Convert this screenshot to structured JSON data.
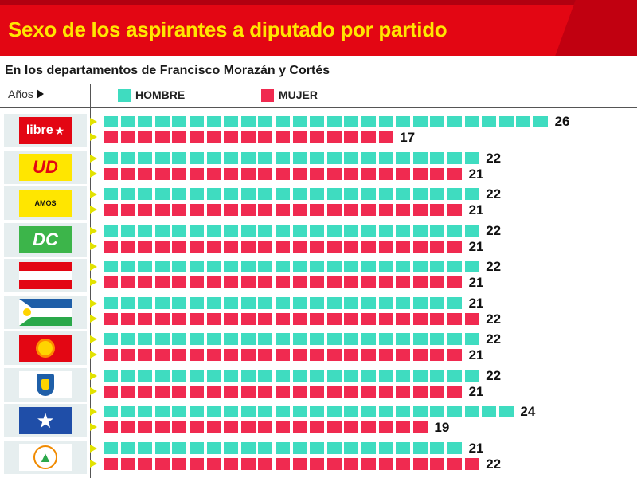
{
  "header": {
    "title": "Sexo de los aspirantes a diputado por partido",
    "subtitle": "En los departamentos de Francisco Morazán y Cortés",
    "years_label": "Años"
  },
  "colors": {
    "banner": "#e30613",
    "title": "#ffe600",
    "hombre": "#3fdcc0",
    "mujer": "#f02a50",
    "pointer": "#e2e200"
  },
  "chart_data": {
    "type": "bar",
    "legend": [
      "HOMBRE",
      "MUJER"
    ],
    "legend_position": "top",
    "categories": [
      "libre",
      "UD",
      "VAMOS",
      "DC",
      "red-white flag",
      "multicolor flag",
      "sun flag",
      "shield emblem",
      "star flag",
      "tree emblem"
    ],
    "series": [
      {
        "name": "HOMBRE",
        "values": [
          26,
          22,
          22,
          22,
          22,
          21,
          22,
          22,
          24,
          21
        ]
      },
      {
        "name": "MUJER",
        "values": [
          17,
          21,
          21,
          21,
          21,
          22,
          21,
          21,
          19,
          22
        ]
      }
    ]
  },
  "logos": [
    {
      "text": "libre",
      "icon": "libre-logo-icon",
      "bg": "#e30613",
      "fg": "#ffffff"
    },
    {
      "text": "UD",
      "icon": "ud-logo-icon",
      "bg": "#ffe600",
      "fg": "#e30613"
    },
    {
      "text": "AMOS",
      "icon": "vamos-logo-icon",
      "bg": "#ffe600",
      "fg": "#111111"
    },
    {
      "text": "DC",
      "icon": "dc-logo-icon",
      "bg": "#3cb54a",
      "fg": "#ffffff"
    },
    {
      "text": "",
      "icon": "red-white-flag-icon",
      "bg": "#e30613",
      "fg": "#ffffff"
    },
    {
      "text": "",
      "icon": "multicolor-flag-icon",
      "bg": "#2aa84a",
      "fg": "#ffffff"
    },
    {
      "text": "",
      "icon": "sun-flag-icon",
      "bg": "#e30613",
      "fg": "#ffd400"
    },
    {
      "text": "",
      "icon": "shield-emblem-icon",
      "bg": "#ffffff",
      "fg": "#1f5fa8"
    },
    {
      "text": "",
      "icon": "star-flag-icon",
      "bg": "#1f4ea8",
      "fg": "#ffffff"
    },
    {
      "text": "",
      "icon": "tree-emblem-icon",
      "bg": "#ffffff",
      "fg": "#2aa84a"
    }
  ]
}
